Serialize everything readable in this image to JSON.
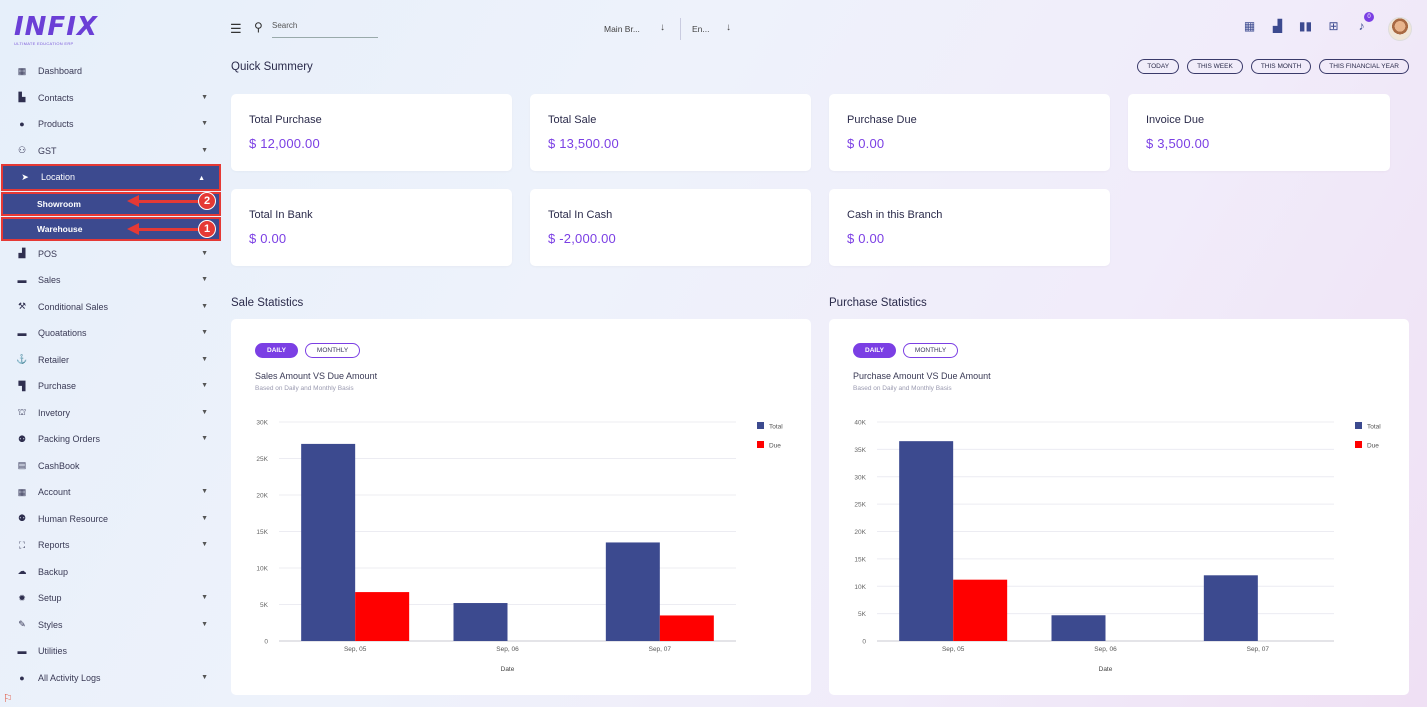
{
  "app": {
    "logo_text": "INFIX",
    "logo_sub": "ULTIMATE EDUCATION ERP"
  },
  "sidebar": {
    "items": [
      {
        "label": "Dashboard",
        "icon": "grid-icon",
        "glyph": "▦",
        "chevron": false
      },
      {
        "label": "Contacts",
        "icon": "contacts-icon",
        "glyph": "▙",
        "chevron": true
      },
      {
        "label": "Products",
        "icon": "products-icon",
        "glyph": "●",
        "chevron": true
      },
      {
        "label": "GST",
        "icon": "gst-icon",
        "glyph": "⚇",
        "chevron": true
      },
      {
        "label": "Location",
        "icon": "location-arrow-icon",
        "glyph": "➤",
        "chevron": true,
        "active": true
      },
      {
        "label": "POS",
        "icon": "pos-icon",
        "glyph": "▟",
        "chevron": true
      },
      {
        "label": "Sales",
        "icon": "sales-icon",
        "glyph": "▬",
        "chevron": true
      },
      {
        "label": "Conditional Sales",
        "icon": "gavel-icon",
        "glyph": "⚒",
        "chevron": true
      },
      {
        "label": "Quoatations",
        "icon": "quotation-icon",
        "glyph": "▬",
        "chevron": true
      },
      {
        "label": "Retailer",
        "icon": "retailer-icon",
        "glyph": "⚓",
        "chevron": true
      },
      {
        "label": "Purchase",
        "icon": "purchase-icon",
        "glyph": "▜",
        "chevron": true
      },
      {
        "label": "Invetory",
        "icon": "inventory-icon",
        "glyph": "⛫",
        "chevron": true
      },
      {
        "label": "Packing Orders",
        "icon": "packing-icon",
        "glyph": "⚉",
        "chevron": true
      },
      {
        "label": "CashBook",
        "icon": "cashbook-icon",
        "glyph": "▤",
        "chevron": false
      },
      {
        "label": "Account",
        "icon": "account-icon",
        "glyph": "▦",
        "chevron": true
      },
      {
        "label": "Human Resource",
        "icon": "users-icon",
        "glyph": "⚉",
        "chevron": true
      },
      {
        "label": "Reports",
        "icon": "reports-icon",
        "glyph": "⛶",
        "chevron": true
      },
      {
        "label": "Backup",
        "icon": "cloud-icon",
        "glyph": "☁",
        "chevron": false
      },
      {
        "label": "Setup",
        "icon": "gear-icon",
        "glyph": "✹",
        "chevron": true
      },
      {
        "label": "Styles",
        "icon": "brush-icon",
        "glyph": "✎",
        "chevron": true
      },
      {
        "label": "Utilities",
        "icon": "utilities-icon",
        "glyph": "▬",
        "chevron": false
      },
      {
        "label": "All Activity Logs",
        "icon": "info-icon",
        "glyph": "●",
        "chevron": true
      }
    ],
    "location_sub": [
      {
        "label": "Showroom",
        "badge": "2"
      },
      {
        "label": "Warehouse",
        "badge": "1"
      }
    ]
  },
  "topbar": {
    "search_placeholder": "Search",
    "branch": "Main Br...",
    "language": "En..."
  },
  "quick": {
    "title": "Quick Summery",
    "periods": [
      "TODAY",
      "THIS WEEK",
      "THIS MONTH",
      "THIS FINANCIAL YEAR"
    ],
    "cards": [
      {
        "label": "Total Purchase",
        "value": "$ 12,000.00"
      },
      {
        "label": "Total Sale",
        "value": "$ 13,500.00"
      },
      {
        "label": "Purchase Due",
        "value": "$ 0.00"
      },
      {
        "label": "Invoice Due",
        "value": "$ 3,500.00"
      },
      {
        "label": "Total In Bank",
        "value": "$ 0.00"
      },
      {
        "label": "Total In Cash",
        "value": "$ -2,000.00"
      },
      {
        "label": "Cash in this Branch",
        "value": "$ 0.00"
      }
    ]
  },
  "sale_stats": {
    "section_title": "Sale Statistics",
    "tab_daily": "DAILY",
    "tab_monthly": "MONTHLY",
    "chart_title": "Sales Amount VS Due Amount",
    "chart_sub": "Based on Daily and Monthly Basis"
  },
  "purchase_stats": {
    "section_title": "Purchase Statistics",
    "tab_daily": "DAILY",
    "tab_monthly": "MONTHLY",
    "chart_title": "Purchase Amount VS Due Amount",
    "chart_sub": "Based on Daily and Monthly Basis"
  },
  "colors": {
    "total": "#3c4a8f",
    "due": "#ff0000",
    "accent": "#7b3fe4",
    "annotation": "#e53935"
  },
  "chart_data": [
    {
      "type": "bar",
      "title": "Sales Amount VS Due Amount",
      "xlabel": "Date",
      "ylabel": "",
      "ylim": [
        0,
        30000
      ],
      "yticks": [
        "0",
        "5K",
        "10K",
        "15K",
        "20K",
        "25K",
        "30K"
      ],
      "categories": [
        "Sep, 05",
        "Sep, 06",
        "Sep, 07"
      ],
      "series": [
        {
          "name": "Total",
          "values": [
            27000,
            5200,
            13500
          ]
        },
        {
          "name": "Due",
          "values": [
            6700,
            0,
            3500
          ]
        }
      ],
      "legend": "right"
    },
    {
      "type": "bar",
      "title": "Purchase Amount VS Due Amount",
      "xlabel": "Date",
      "ylabel": "",
      "ylim": [
        0,
        40000
      ],
      "yticks": [
        "0",
        "5K",
        "10K",
        "15K",
        "20K",
        "25K",
        "30K",
        "35K",
        "40K"
      ],
      "categories": [
        "Sep, 05",
        "Sep, 06",
        "Sep, 07"
      ],
      "series": [
        {
          "name": "Total",
          "values": [
            36500,
            4700,
            12000
          ]
        },
        {
          "name": "Due",
          "values": [
            11200,
            0,
            0
          ]
        }
      ],
      "legend": "right"
    }
  ]
}
